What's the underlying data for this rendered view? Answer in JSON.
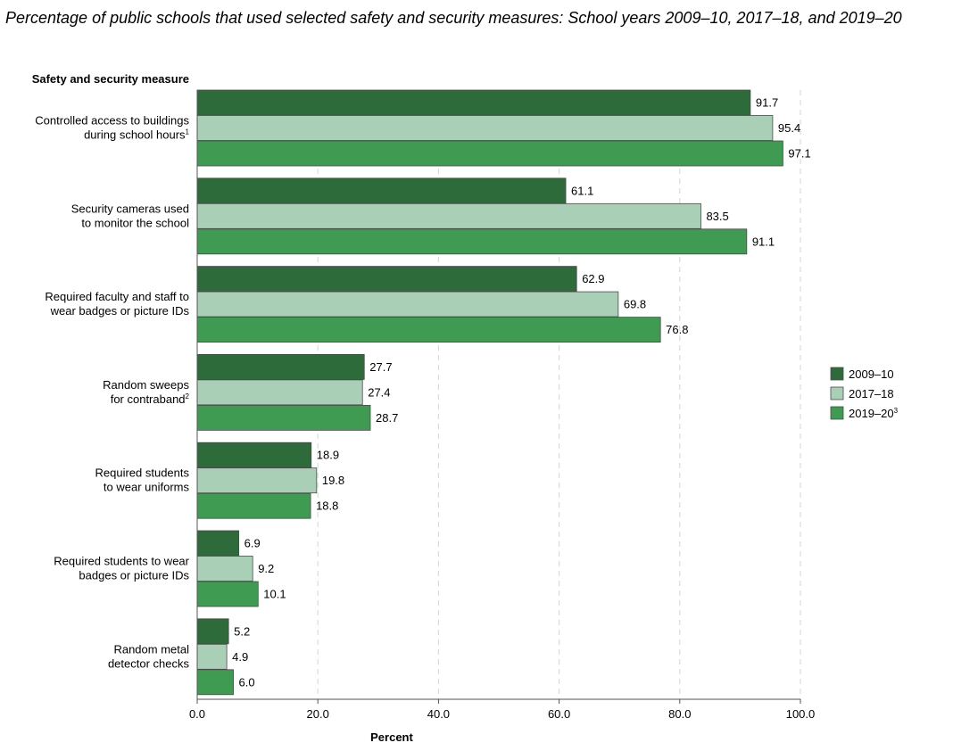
{
  "title": "Percentage of public schools that used selected safety and security measures: School years 2009–10, 2017–18, and 2019–20",
  "chart_data": {
    "type": "bar",
    "orientation": "horizontal",
    "title": "Percentage of public schools that used selected safety and security measures: School years 2009–10, 2017–18, and 2019–20",
    "category_axis_label": "Safety and security measure",
    "xlabel": "Percent",
    "xlim": [
      0,
      100
    ],
    "x_ticks": [
      "0.0",
      "20.0",
      "40.0",
      "60.0",
      "80.0",
      "100.0"
    ],
    "x_tick_values": [
      0,
      20,
      40,
      60,
      80,
      100
    ],
    "grid": "vertical dashed",
    "legend_position": "right",
    "categories": [
      {
        "lines": [
          "Controlled access to buildings",
          "during school hours"
        ],
        "footnote": "1"
      },
      {
        "lines": [
          "Security cameras used",
          "to monitor the school"
        ],
        "footnote": ""
      },
      {
        "lines": [
          "Required faculty and staff to",
          "wear badges or picture IDs"
        ],
        "footnote": ""
      },
      {
        "lines": [
          "Random sweeps",
          "for contraband"
        ],
        "footnote": "2"
      },
      {
        "lines": [
          "Required students",
          "to wear uniforms"
        ],
        "footnote": ""
      },
      {
        "lines": [
          "Required students to wear",
          "badges or picture IDs"
        ],
        "footnote": ""
      },
      {
        "lines": [
          "Random metal",
          "detector checks"
        ],
        "footnote": ""
      }
    ],
    "series": [
      {
        "name": "2009–10",
        "footnote": "",
        "color": "#2e6b3a",
        "values": [
          91.7,
          61.1,
          62.9,
          27.7,
          18.9,
          6.9,
          5.2
        ],
        "labels": [
          "91.7",
          "61.1",
          "62.9",
          "27.7",
          "18.9",
          "6.9",
          "5.2"
        ]
      },
      {
        "name": "2017–18",
        "footnote": "",
        "color": "#a9cfb7",
        "values": [
          95.4,
          83.5,
          69.8,
          27.4,
          19.8,
          9.2,
          4.9
        ],
        "labels": [
          "95.4",
          "83.5",
          "69.8",
          "27.4",
          "19.8",
          "9.2",
          "4.9"
        ]
      },
      {
        "name": "2019–20",
        "footnote": "3",
        "color": "#3f9b51",
        "values": [
          97.1,
          91.1,
          76.8,
          28.7,
          18.8,
          10.1,
          6.0
        ],
        "labels": [
          "97.1",
          "91.1",
          "76.8",
          "28.7",
          "18.8",
          "10.1",
          "6.0"
        ]
      }
    ]
  }
}
